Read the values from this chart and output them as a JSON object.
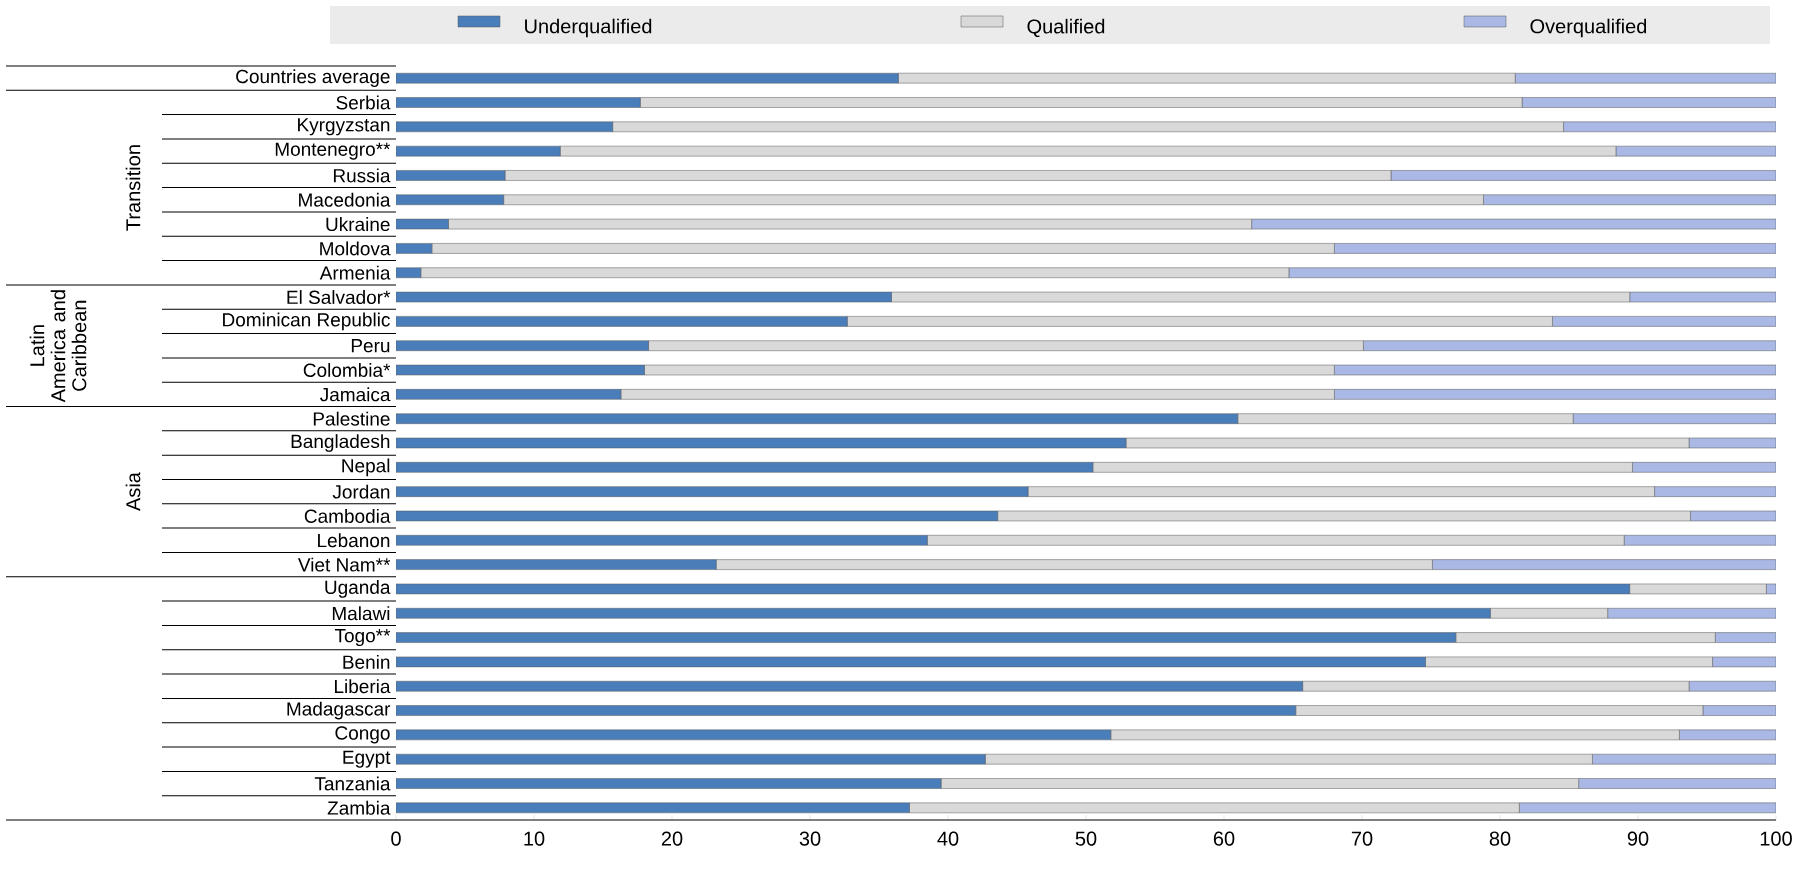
{
  "chart_data": {
    "type": "bar",
    "orientation": "horizontal",
    "stacked": true,
    "legend": "top",
    "grid": false,
    "categories": [
      "Countries average",
      "Serbia",
      "Kyrgyzstan",
      "Montenegro**",
      "Russia",
      "Macedonia",
      "Ukraine",
      "Moldova",
      "Armenia",
      "El Salvador*",
      "Dominican Republic",
      "Peru",
      "Colombia*",
      "Jamaica",
      "Palestine",
      "Bangladesh",
      "Nepal",
      "Jordan",
      "Cambodia",
      "Lebanon",
      "Viet Nam**",
      "Uganda",
      "Malawi",
      "Togo**",
      "Benin",
      "Liberia",
      "Madagascar",
      "Congo",
      "Egypt",
      "Tanzania",
      "Zambia"
    ],
    "series": [
      {
        "name": "Underqualified",
        "color": "#4a7ebb",
        "values": [
          36.4,
          17.7,
          15.7,
          11.9,
          7.9,
          7.8,
          3.8,
          2.6,
          1.8,
          35.9,
          32.7,
          18.3,
          18.0,
          16.3,
          61.0,
          52.9,
          50.5,
          45.8,
          43.6,
          38.5,
          23.2,
          89.4,
          79.3,
          76.8,
          74.6,
          65.7,
          65.2,
          51.8,
          42.7,
          39.5,
          37.2
        ]
      },
      {
        "name": "Qualified",
        "color": "#d9d9d9",
        "values": [
          44.7,
          63.9,
          68.9,
          76.5,
          64.2,
          71.0,
          58.2,
          65.4,
          62.9,
          53.5,
          51.1,
          51.8,
          50.0,
          51.7,
          24.3,
          40.8,
          39.1,
          45.4,
          50.2,
          50.5,
          51.9,
          9.9,
          8.5,
          18.8,
          20.8,
          28.0,
          29.5,
          41.2,
          44.0,
          46.2,
          44.2
        ]
      },
      {
        "name": "Overqualified",
        "color": "#a9b8e4",
        "values": [
          18.9,
          18.4,
          15.4,
          11.6,
          27.9,
          21.2,
          38.0,
          32.0,
          35.3,
          10.6,
          16.2,
          29.9,
          32.0,
          32.0,
          14.7,
          6.3,
          10.4,
          8.8,
          6.2,
          11.0,
          24.9,
          0.7,
          12.2,
          4.4,
          4.6,
          6.3,
          5.3,
          7.0,
          13.3,
          14.3,
          18.6
        ]
      }
    ],
    "xlim": [
      0,
      100
    ],
    "xticks": [
      0,
      10,
      20,
      30,
      40,
      50,
      60,
      70,
      80,
      90,
      100
    ],
    "annotations": [
      "Transition",
      "Latin America and Caribbean",
      "Asia"
    ]
  }
}
